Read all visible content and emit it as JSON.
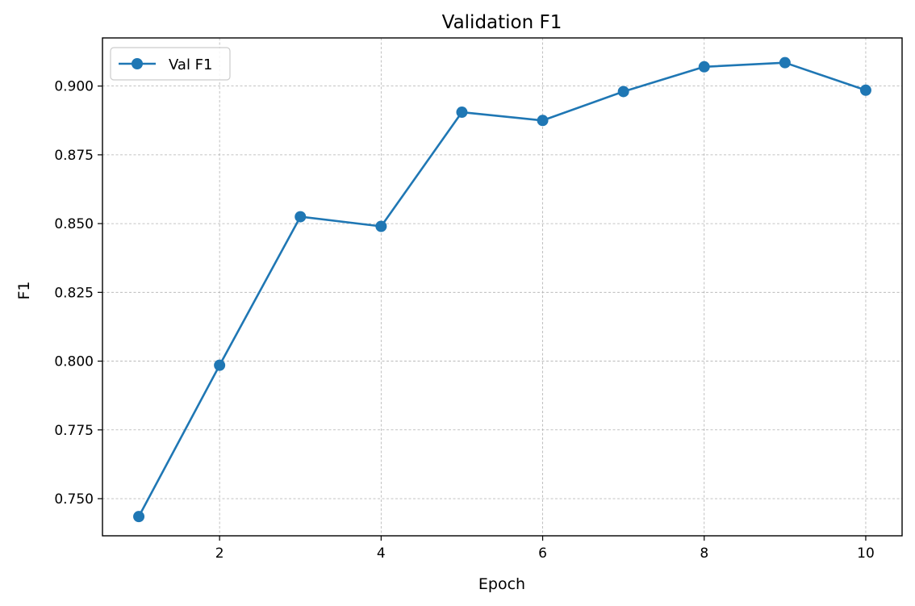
{
  "chart_data": {
    "type": "line",
    "title": "Validation F1",
    "xlabel": "Epoch",
    "ylabel": "F1",
    "xlim": [
      0.55,
      10.45
    ],
    "ylim": [
      0.7365,
      0.9175
    ],
    "xticks": [
      2,
      4,
      6,
      8,
      10
    ],
    "xtick_labels": [
      "2",
      "4",
      "6",
      "8",
      "10"
    ],
    "yticks": [
      0.75,
      0.775,
      0.8,
      0.825,
      0.85,
      0.875,
      0.9
    ],
    "ytick_labels": [
      "0.750",
      "0.775",
      "0.800",
      "0.825",
      "0.850",
      "0.875",
      "0.900"
    ],
    "grid": true,
    "legend_position": "top-left",
    "series": [
      {
        "name": "Val F1",
        "color": "#1f77b4",
        "marker": "circle",
        "x": [
          1,
          2,
          3,
          4,
          5,
          6,
          7,
          8,
          9,
          10
        ],
        "y": [
          0.7435,
          0.7985,
          0.8525,
          0.849,
          0.8905,
          0.8875,
          0.898,
          0.907,
          0.9085,
          0.8985
        ]
      }
    ]
  }
}
